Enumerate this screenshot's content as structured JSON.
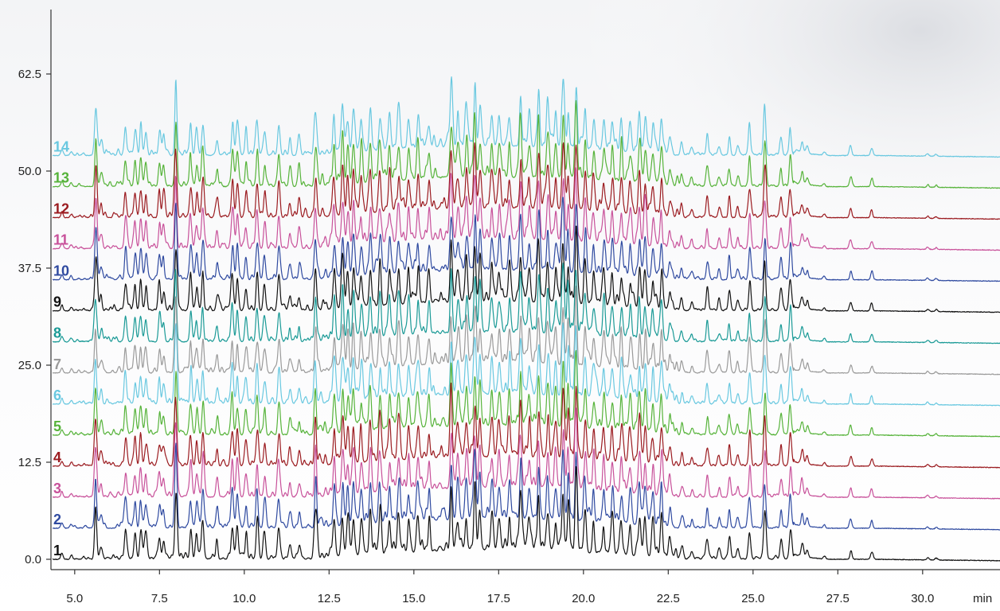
{
  "chart_data": {
    "type": "line",
    "title": "",
    "xlabel": "",
    "ylabel": "",
    "x_unit_label": "min",
    "xlim": [
      4.3,
      32.2
    ],
    "ylim": [
      -1.5,
      69
    ],
    "x_ticks": [
      5.0,
      7.5,
      10.0,
      12.5,
      15.0,
      17.5,
      20.0,
      22.5,
      25.0,
      27.5,
      30.0
    ],
    "x_tick_labels": [
      "5.0",
      "7.5",
      "10.0",
      "12.5",
      "15.0",
      "17.5",
      "20.0",
      "22.5",
      "25.0",
      "27.5",
      "30.0"
    ],
    "y_ticks": [
      0.0,
      12.5,
      25.0,
      37.5,
      50.0,
      62.5
    ],
    "y_tick_labels": [
      "0.0",
      "12.5",
      "25.0",
      "37.5",
      "50.0",
      "62.5"
    ],
    "grid": false,
    "legend": "trace numbers at left of each baseline",
    "peaks": [
      {
        "t": 4.62,
        "h": 0.7
      },
      {
        "t": 4.9,
        "h": 0.5
      },
      {
        "t": 5.62,
        "h": 6.0
      },
      {
        "t": 5.78,
        "h": 1.5
      },
      {
        "t": 6.5,
        "h": 3.5
      },
      {
        "t": 6.78,
        "h": 3.0
      },
      {
        "t": 6.95,
        "h": 3.5
      },
      {
        "t": 7.1,
        "h": 3.0
      },
      {
        "t": 7.5,
        "h": 3.0
      },
      {
        "t": 7.62,
        "h": 2.5
      },
      {
        "t": 7.98,
        "h": 9.0
      },
      {
        "t": 8.42,
        "h": 4.0
      },
      {
        "t": 8.6,
        "h": 3.0
      },
      {
        "t": 8.78,
        "h": 4.5
      },
      {
        "t": 9.2,
        "h": 2.0
      },
      {
        "t": 9.65,
        "h": 4.5
      },
      {
        "t": 9.8,
        "h": 4.0
      },
      {
        "t": 10.05,
        "h": 3.0
      },
      {
        "t": 10.38,
        "h": 4.5
      },
      {
        "t": 10.6,
        "h": 3.0
      },
      {
        "t": 11.02,
        "h": 4.0
      },
      {
        "t": 11.35,
        "h": 2.0
      },
      {
        "t": 11.62,
        "h": 2.0
      },
      {
        "t": 12.1,
        "h": 5.5
      },
      {
        "t": 12.65,
        "h": 4.5
      },
      {
        "t": 12.9,
        "h": 5.5
      },
      {
        "t": 13.05,
        "h": 4.0
      },
      {
        "t": 13.22,
        "h": 5.0
      },
      {
        "t": 13.45,
        "h": 4.0
      },
      {
        "t": 13.72,
        "h": 4.5
      },
      {
        "t": 14.0,
        "h": 4.5
      },
      {
        "t": 14.28,
        "h": 4.0
      },
      {
        "t": 14.55,
        "h": 4.5
      },
      {
        "t": 14.85,
        "h": 3.5
      },
      {
        "t": 15.12,
        "h": 4.0
      },
      {
        "t": 15.45,
        "h": 3.0
      },
      {
        "t": 16.1,
        "h": 7.0
      },
      {
        "t": 16.3,
        "h": 4.0
      },
      {
        "t": 16.55,
        "h": 4.5
      },
      {
        "t": 16.8,
        "h": 7.0
      },
      {
        "t": 16.95,
        "h": 5.0
      },
      {
        "t": 17.3,
        "h": 4.0
      },
      {
        "t": 17.52,
        "h": 4.0
      },
      {
        "t": 17.82,
        "h": 4.0
      },
      {
        "t": 18.15,
        "h": 6.5
      },
      {
        "t": 18.4,
        "h": 4.0
      },
      {
        "t": 18.68,
        "h": 6.5
      },
      {
        "t": 18.95,
        "h": 5.0
      },
      {
        "t": 19.18,
        "h": 4.0
      },
      {
        "t": 19.4,
        "h": 8.0
      },
      {
        "t": 19.55,
        "h": 5.0
      },
      {
        "t": 19.78,
        "h": 9.0
      },
      {
        "t": 20.05,
        "h": 4.5
      },
      {
        "t": 20.3,
        "h": 3.5
      },
      {
        "t": 20.6,
        "h": 4.0
      },
      {
        "t": 20.85,
        "h": 4.0
      },
      {
        "t": 21.12,
        "h": 4.0
      },
      {
        "t": 21.38,
        "h": 3.5
      },
      {
        "t": 21.65,
        "h": 4.5
      },
      {
        "t": 21.82,
        "h": 4.5
      },
      {
        "t": 22.05,
        "h": 3.5
      },
      {
        "t": 22.3,
        "h": 4.5
      },
      {
        "t": 22.55,
        "h": 2.0
      },
      {
        "t": 22.9,
        "h": 1.5
      },
      {
        "t": 23.2,
        "h": 1.0
      },
      {
        "t": 23.65,
        "h": 2.5
      },
      {
        "t": 24.0,
        "h": 1.2
      },
      {
        "t": 24.3,
        "h": 2.5
      },
      {
        "t": 24.55,
        "h": 1.2
      },
      {
        "t": 24.9,
        "h": 4.0
      },
      {
        "t": 25.35,
        "h": 6.0
      },
      {
        "t": 25.82,
        "h": 2.5
      },
      {
        "t": 26.1,
        "h": 4.0
      },
      {
        "t": 26.45,
        "h": 1.5
      },
      {
        "t": 26.6,
        "h": 1.0
      },
      {
        "t": 27.1,
        "h": 0.4
      },
      {
        "t": 27.88,
        "h": 1.2
      },
      {
        "t": 28.5,
        "h": 1.0
      },
      {
        "t": 30.15,
        "h": 0.3
      },
      {
        "t": 30.4,
        "h": 0.25
      }
    ],
    "series": [
      {
        "name": "1",
        "color": "#111111",
        "offset": 0.0
      },
      {
        "name": "2",
        "color": "#2f4aa0",
        "offset": 4.0
      },
      {
        "name": "3",
        "color": "#c8519a",
        "offset": 8.0
      },
      {
        "name": "4",
        "color": "#9b1b20",
        "offset": 12.0
      },
      {
        "name": "5",
        "color": "#56b33a",
        "offset": 16.0
      },
      {
        "name": "6",
        "color": "#69c8e0",
        "offset": 20.0
      },
      {
        "name": "7",
        "color": "#9a9a9a",
        "offset": 24.0
      },
      {
        "name": "8",
        "color": "#1a9a96",
        "offset": 28.0
      },
      {
        "name": "9",
        "color": "#111111",
        "offset": 32.0
      },
      {
        "name": "10",
        "color": "#2f4aa0",
        "offset": 36.0
      },
      {
        "name": "11",
        "color": "#c8519a",
        "offset": 40.0
      },
      {
        "name": "12",
        "color": "#9b1b20",
        "offset": 44.0
      },
      {
        "name": "13",
        "color": "#56b33a",
        "offset": 48.0
      },
      {
        "name": "14",
        "color": "#69c8e0",
        "offset": 52.0
      }
    ]
  }
}
